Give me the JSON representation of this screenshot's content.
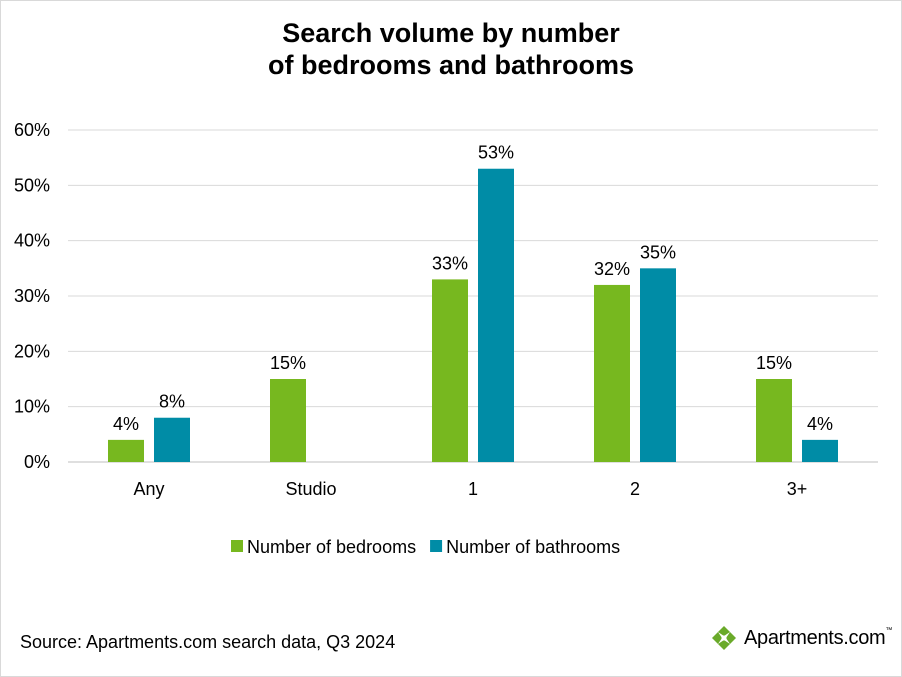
{
  "title": {
    "line1": "Search volume by number",
    "line2": "of bedrooms and bathrooms"
  },
  "source": "Source: Apartments.com search data, Q3 2024",
  "logo": {
    "text": "Apartments.com",
    "icon": "apartments-leaf-icon",
    "color": "#6aaa2a"
  },
  "chart_data": {
    "type": "bar",
    "categories": [
      "Any",
      "Studio",
      "1",
      "2",
      "3+"
    ],
    "series": [
      {
        "name": "Number of bedrooms",
        "color": "#77b81f",
        "values": [
          4,
          15,
          33,
          32,
          15
        ]
      },
      {
        "name": "Number of bathrooms",
        "color": "#008ca6",
        "values": [
          8,
          null,
          53,
          35,
          4
        ]
      }
    ],
    "value_labels": [
      [
        "4%",
        "15%",
        "33%",
        "32%",
        "15%"
      ],
      [
        "8%",
        "",
        "53%",
        "35%",
        "4%"
      ]
    ],
    "yticks": [
      "0%",
      "10%",
      "20%",
      "30%",
      "40%",
      "50%",
      "60%"
    ],
    "ylim": [
      0,
      60
    ],
    "grid": true,
    "legend": "bottom"
  }
}
